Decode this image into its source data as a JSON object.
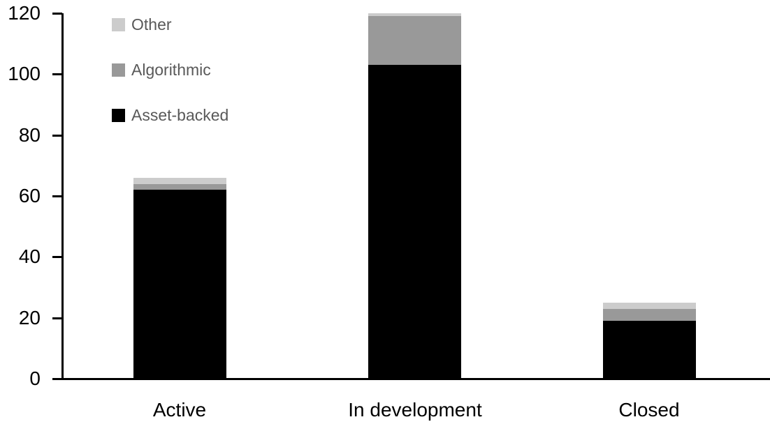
{
  "chart_data": {
    "type": "bar",
    "stacked": true,
    "title": "",
    "xlabel": "",
    "ylabel": "",
    "categories": [
      "Active",
      "In development",
      "Closed"
    ],
    "series": [
      {
        "name": "Asset-backed",
        "color": "#000000",
        "values": [
          62,
          103,
          19
        ]
      },
      {
        "name": "Algorithmic",
        "color": "#999999",
        "values": [
          2,
          16,
          4
        ]
      },
      {
        "name": "Other",
        "color": "#cccccc",
        "values": [
          2,
          1,
          2
        ]
      }
    ],
    "totals": [
      66,
      120,
      25
    ],
    "y_ticks": [
      0,
      20,
      40,
      60,
      80,
      100,
      120
    ],
    "ylim": [
      0,
      120
    ],
    "grid": false,
    "legend_position": "top-left",
    "legend_order": [
      "Other",
      "Algorithmic",
      "Asset-backed"
    ]
  },
  "style_colors": {
    "axis": "#000000",
    "tick_label_text": "#000000",
    "category_label_text": "#000000",
    "legend_text": "#595959",
    "background": "#ffffff"
  }
}
